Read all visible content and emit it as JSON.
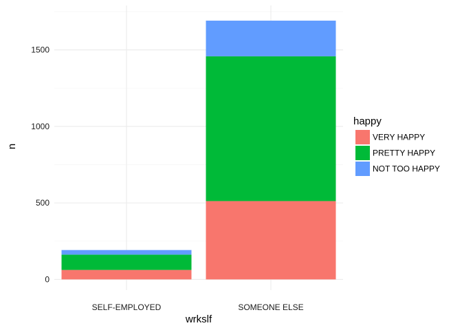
{
  "chart_data": {
    "type": "bar",
    "stacked": true,
    "xlabel": "wrkslf",
    "ylabel": "n",
    "categories": [
      "SELF-EMPLOYED",
      "SOMEONE ELSE"
    ],
    "ylim": [
      -70,
      1790
    ],
    "yticks": [
      0,
      500,
      1000,
      1500
    ],
    "grid": true,
    "legend": {
      "title": "happy",
      "position": "right"
    },
    "series": [
      {
        "name": "VERY HAPPY",
        "color": "#F8766D",
        "values": [
          62,
          512
        ]
      },
      {
        "name": "PRETTY HAPPY",
        "color": "#00BA38",
        "values": [
          100,
          946
        ]
      },
      {
        "name": "NOT TOO HAPPY",
        "color": "#619CFF",
        "values": [
          30,
          233
        ]
      }
    ],
    "colors": {
      "grid_major": "#ebebeb",
      "grid_minor": "#f5f5f5"
    }
  }
}
